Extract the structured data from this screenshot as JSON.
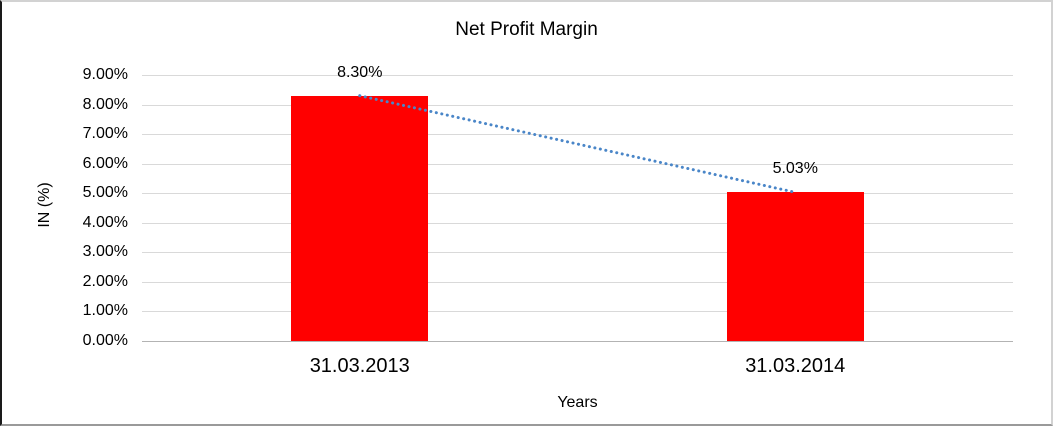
{
  "chart_data": {
    "type": "bar",
    "title": "Net Profit Margin",
    "xlabel": "Years",
    "ylabel": "IN (%)",
    "categories": [
      "31.03.2013",
      "31.03.2014"
    ],
    "values": [
      8.3,
      5.03
    ],
    "data_labels": [
      "8.30%",
      "5.03%"
    ],
    "y_ticks": [
      "9.00%",
      "8.00%",
      "7.00%",
      "6.00%",
      "5.00%",
      "4.00%",
      "3.00%",
      "2.00%",
      "1.00%",
      "0.00%"
    ],
    "ylim": [
      0,
      9
    ],
    "grid": true,
    "legend": "none",
    "bar_color": "#ff0000",
    "trendline": {
      "style": "dotted",
      "color": "#4a86c8"
    },
    "colors": {
      "gridline": "#d9d9d9",
      "axis_line": "#b3b3b3",
      "text": "#000000",
      "background": "#ffffff"
    }
  }
}
